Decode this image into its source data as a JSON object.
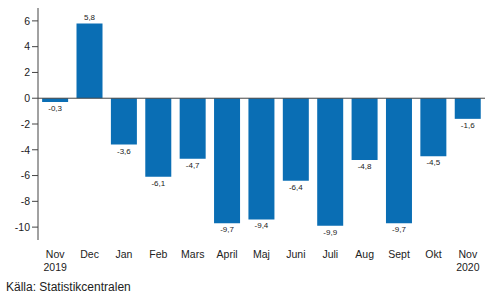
{
  "chart_data": {
    "type": "bar",
    "annotations": [
      "Källa: Statistikcentralen"
    ],
    "categories": [
      "Nov 2019",
      "Dec",
      "Jan",
      "Feb",
      "Mars",
      "April",
      "Maj",
      "Juni",
      "Juli",
      "Aug",
      "Sept",
      "Okt",
      "Nov 2020"
    ],
    "values": [
      -0.3,
      5.8,
      -3.6,
      -6.1,
      -4.7,
      -9.7,
      -9.4,
      -6.4,
      -9.9,
      -4.8,
      -9.7,
      -4.5,
      -1.6
    ],
    "value_labels": [
      "-0,3",
      "5,8",
      "-3,6",
      "-6,1",
      "-4,7",
      "-9,7",
      "-9,4",
      "-6,4",
      "-9,9",
      "-4,8",
      "-9,7",
      "-4,5",
      "-1,6"
    ],
    "color": "#0a6eb4",
    "ylim": [
      -11,
      7
    ],
    "yticks": [
      -10,
      -8,
      -6,
      -4,
      -2,
      0,
      2,
      4,
      6
    ],
    "grid": false,
    "data_labels": true
  }
}
